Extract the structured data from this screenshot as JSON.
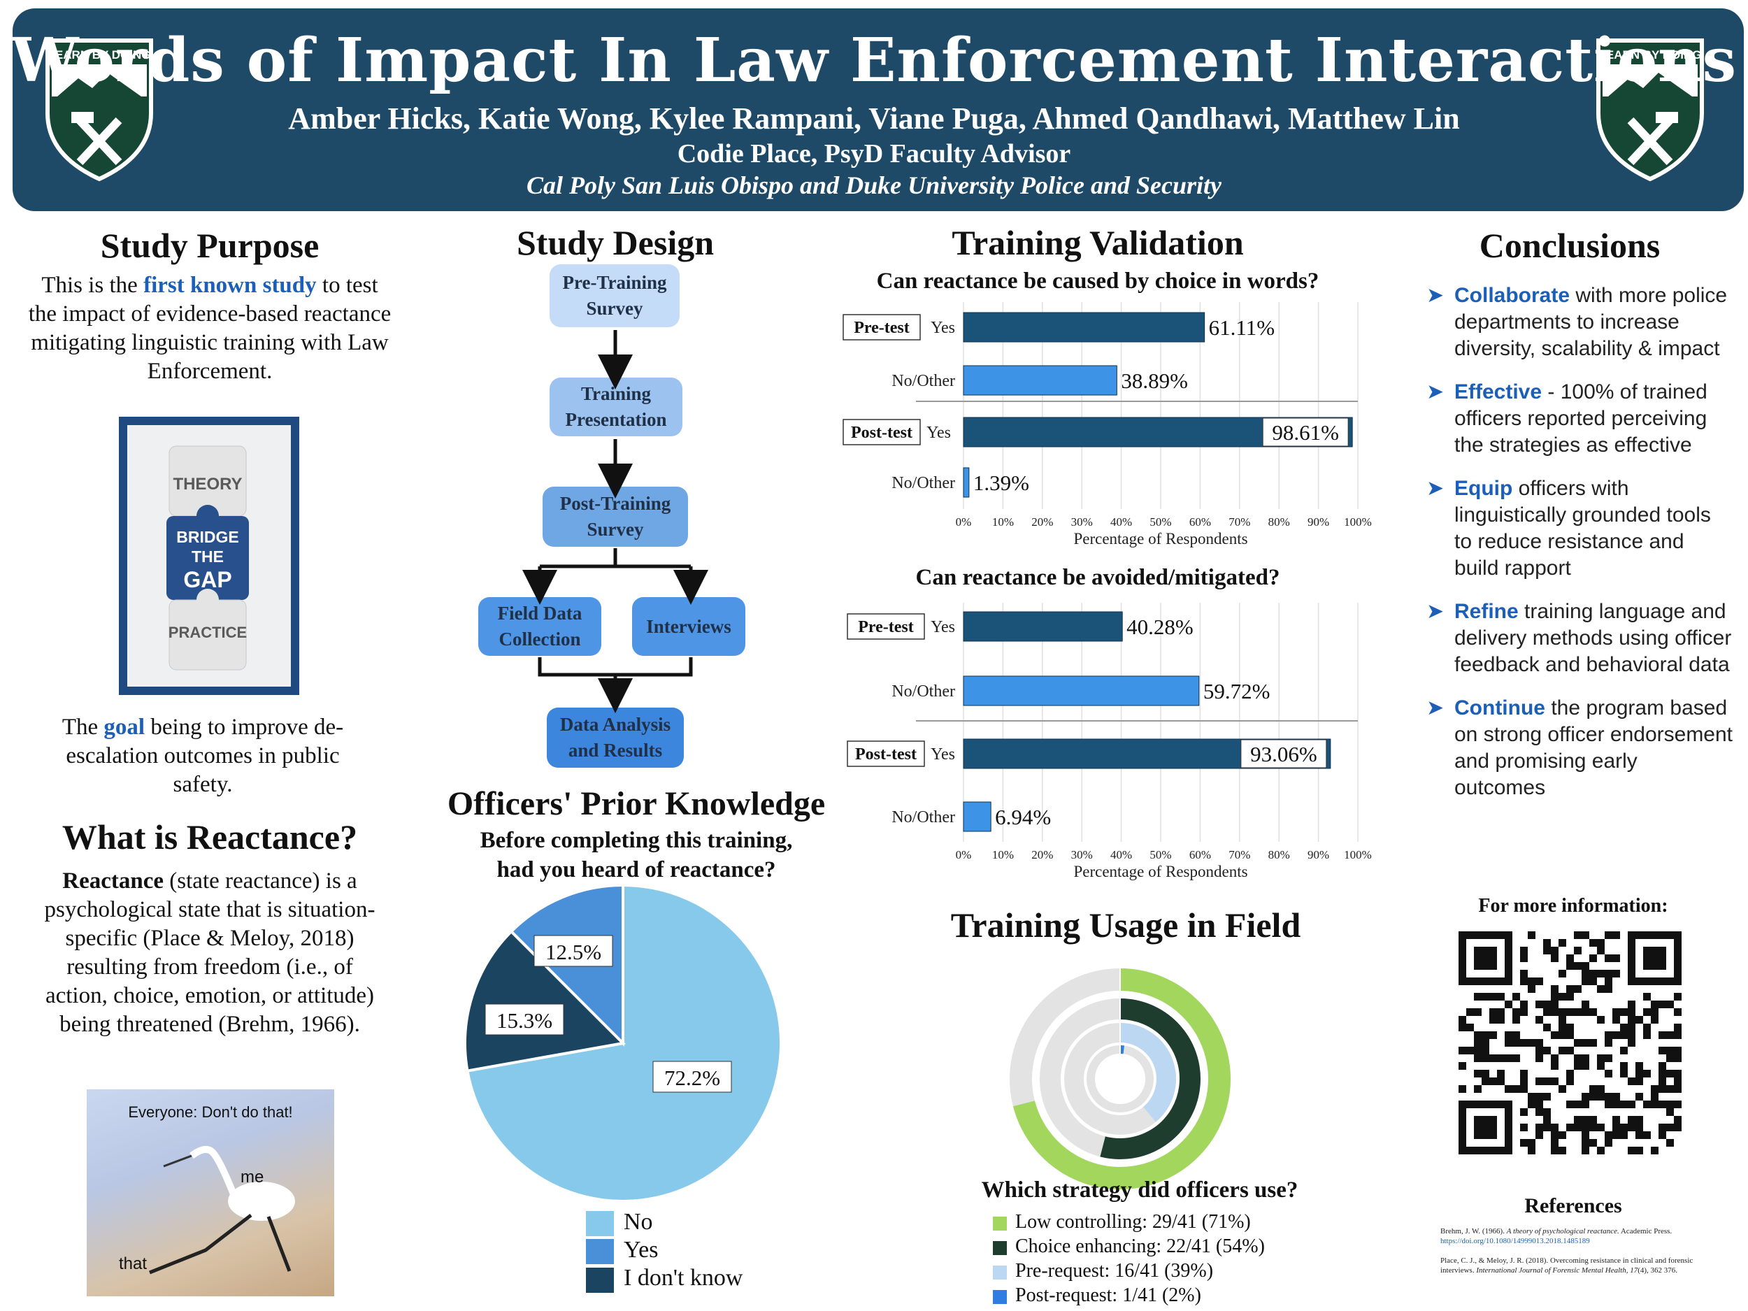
{
  "header": {
    "title": "Words of Impact In Law Enforcement Interactions",
    "authors": "Amber Hicks, Katie Wong, Kylee Rampani, Viane Puga, Ahmed Qandhawi, Matthew Lin",
    "advisor": "Codie Place, PsyD Faculty Advisor",
    "institutions": "Cal Poly San Luis Obispo and Duke University Police and Security",
    "logo_text": "LEARN BY DOING"
  },
  "study_purpose": {
    "title": "Study Purpose",
    "text_before": "This is the ",
    "highlight": "first known study",
    "text_after": " to test the impact of evidence-based reactance mitigating linguistic training with Law Enforcement.",
    "puzzle": [
      "THEORY",
      "BRIDGE",
      "THE",
      "GAP",
      "PRACTICE"
    ],
    "goal_before": "The ",
    "goal_highlight": "goal",
    "goal_after": " being to improve de-escalation outcomes in public safety."
  },
  "reactance": {
    "title": "What is Reactance?",
    "term": "Reactance",
    "text": " (state reactance) is a psychological state that is situation-specific (Place & Meloy, 2018) resulting from freedom (i.e., of action, choice, emotion, or attitude) being threatened (Brehm, 1966).",
    "meme_caption": "Everyone: Don't do that!",
    "meme_me": "me",
    "meme_that": "that"
  },
  "study_design": {
    "title": "Study Design",
    "steps": [
      "Pre-Training Survey",
      "Training Presentation",
      "Post-Training Survey",
      "Field Data Collection",
      "Interviews",
      "Data Analysis and Results"
    ]
  },
  "prior_knowledge": {
    "title": "Officers' Prior Knowledge",
    "question_line1": "Before completing this training,",
    "question_line2": "had you heard of reactance?"
  },
  "training_validation": {
    "title": "Training Validation"
  },
  "field_usage": {
    "title": "Training Usage in Field",
    "question": "Which strategy did officers use?",
    "legend": [
      "Low controlling: 29/41 (71%)",
      "Choice enhancing: 22/41 (54%)",
      "Pre-request: 16/41 (39%)",
      "Post-request: 1/41 (2%)"
    ]
  },
  "conclusions": {
    "title": "Conclusions",
    "items": [
      {
        "kw": "Collaborate",
        "rest": " with more police departments to increase diversity, scalability & impact"
      },
      {
        "kw": "Effective",
        "rest": " - 100% of trained officers reported perceiving the strategies as effective"
      },
      {
        "kw": "Equip",
        "rest": " officers with linguistically grounded tools to reduce resistance and build rapport"
      },
      {
        "kw": "Refine",
        "rest": " training language and delivery methods using officer feedback and behavioral data"
      },
      {
        "kw": "Continue",
        "rest": " the program based on strong officer endorsement and promising early outcomes"
      }
    ],
    "more_info": "For more information:",
    "references_title": "References",
    "ref1_a": "Brehm, J. W. (1966). ",
    "ref1_b": "A theory of psychological reactance.",
    "ref1_c": " Academic Press. ",
    "ref1_link": "https://doi.org/10.1080/14999013.2018.1485189",
    "ref2_a": "Place, C. J., & Meloy, J. R. (2018). Overcoming resistance in clinical and forensic interviews. ",
    "ref2_b": "International Journal of Forensic Mental Health, 17",
    "ref2_c": "(4), 362 376."
  },
  "chart_data": [
    {
      "type": "bar",
      "title": "Can reactance be caused by choice in words?",
      "xlabel": "Percentage of Respondents",
      "xlim": [
        0,
        100
      ],
      "ticks": [
        "0%",
        "10%",
        "20%",
        "30%",
        "40%",
        "50%",
        "60%",
        "70%",
        "80%",
        "90%",
        "100%"
      ],
      "groups": [
        "Pre-test",
        "Post-test"
      ],
      "categories": [
        "Yes",
        "No/Other",
        "Yes",
        "No/Other"
      ],
      "values": [
        61.11,
        38.89,
        98.61,
        1.39
      ],
      "labels": [
        "61.11%",
        "38.89%",
        "98.61%",
        "1.39%"
      ]
    },
    {
      "type": "bar",
      "title": "Can reactance be avoided/mitigated?",
      "xlabel": "Percentage of Respondents",
      "xlim": [
        0,
        100
      ],
      "ticks": [
        "0%",
        "10%",
        "20%",
        "30%",
        "40%",
        "50%",
        "60%",
        "70%",
        "80%",
        "90%",
        "100%"
      ],
      "groups": [
        "Pre-test",
        "Post-test"
      ],
      "categories": [
        "Yes",
        "No/Other",
        "Yes",
        "No/Other"
      ],
      "values": [
        40.28,
        59.72,
        93.06,
        6.94
      ],
      "labels": [
        "40.28%",
        "59.72%",
        "93.06%",
        "6.94%"
      ]
    },
    {
      "type": "pie",
      "title": "Before completing this training, had you heard of reactance?",
      "categories": [
        "No",
        "Yes",
        "I don't know"
      ],
      "values": [
        72.2,
        12.5,
        15.3
      ],
      "labels": [
        "72.2%",
        "12.5%",
        "15.3%"
      ],
      "colors": [
        "#87c9ea",
        "#4a90d9",
        "#1b4461"
      ]
    },
    {
      "type": "donut",
      "title": "Which strategy did officers use?",
      "categories": [
        "Low controlling",
        "Choice enhancing",
        "Pre-request",
        "Post-request"
      ],
      "values": [
        71,
        54,
        39,
        2
      ],
      "colors": [
        "#a3d65c",
        "#1f3d2e",
        "#bcd7f2",
        "#2f7de0"
      ]
    }
  ]
}
